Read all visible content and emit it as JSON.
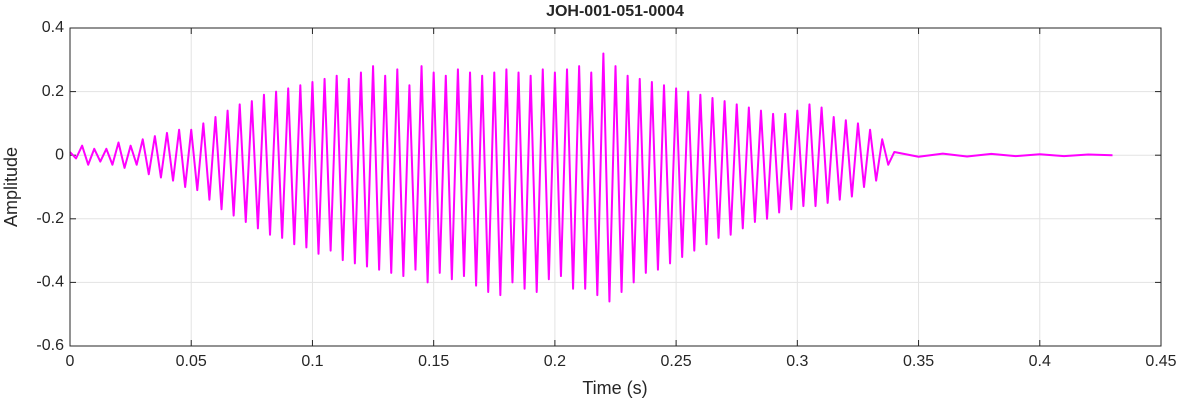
{
  "chart_data": {
    "type": "line",
    "title": "JOH-001-051-0004",
    "xlabel": "Time (s)",
    "ylabel": "Amplitude",
    "color": "#ff00ff",
    "grid": true,
    "xlim": [
      0,
      0.45
    ],
    "xticks": [
      0,
      0.05,
      0.1,
      0.15,
      0.2,
      0.25,
      0.3,
      0.35,
      0.4,
      0.45
    ],
    "ylim": [
      -0.6,
      0.4
    ],
    "yticks": [
      -0.6,
      -0.4,
      -0.2,
      0,
      0.2,
      0.4
    ],
    "x": [
      0,
      0.0025,
      0.005,
      0.0075,
      0.01,
      0.0125,
      0.015,
      0.0175,
      0.02,
      0.0225,
      0.025,
      0.0275,
      0.03,
      0.0325,
      0.035,
      0.0375,
      0.04,
      0.0425,
      0.045,
      0.0475,
      0.05,
      0.0525,
      0.055,
      0.0575,
      0.06,
      0.0625,
      0.065,
      0.0675,
      0.07,
      0.0725,
      0.075,
      0.0775,
      0.08,
      0.0825,
      0.085,
      0.0875,
      0.09,
      0.0925,
      0.095,
      0.0975,
      0.1,
      0.1025,
      0.105,
      0.1075,
      0.11,
      0.1125,
      0.115,
      0.1175,
      0.12,
      0.1225,
      0.125,
      0.1275,
      0.13,
      0.1325,
      0.135,
      0.1375,
      0.14,
      0.1425,
      0.145,
      0.1475,
      0.15,
      0.1525,
      0.155,
      0.1575,
      0.16,
      0.1625,
      0.165,
      0.1675,
      0.17,
      0.1725,
      0.175,
      0.1775,
      0.18,
      0.1825,
      0.185,
      0.1875,
      0.19,
      0.1925,
      0.195,
      0.1975,
      0.2,
      0.2025,
      0.205,
      0.2075,
      0.21,
      0.2125,
      0.215,
      0.2175,
      0.22,
      0.2225,
      0.225,
      0.2275,
      0.23,
      0.2325,
      0.235,
      0.2375,
      0.24,
      0.2425,
      0.245,
      0.2475,
      0.25,
      0.2525,
      0.255,
      0.2575,
      0.26,
      0.2625,
      0.265,
      0.2675,
      0.27,
      0.2725,
      0.275,
      0.2775,
      0.28,
      0.2825,
      0.285,
      0.2875,
      0.29,
      0.2925,
      0.295,
      0.2975,
      0.3,
      0.3025,
      0.305,
      0.3075,
      0.31,
      0.3125,
      0.315,
      0.3175,
      0.32,
      0.3225,
      0.325,
      0.3275,
      0.33,
      0.3325,
      0.335,
      0.3375,
      0.34,
      0.35,
      0.36,
      0.37,
      0.38,
      0.39,
      0.4,
      0.41,
      0.42,
      0.43
    ],
    "values": [
      0.01,
      -0.01,
      0.03,
      -0.03,
      0.02,
      -0.02,
      0.02,
      -0.03,
      0.04,
      -0.04,
      0.03,
      -0.03,
      0.05,
      -0.06,
      0.06,
      -0.07,
      0.07,
      -0.08,
      0.08,
      -0.1,
      0.08,
      -0.11,
      0.1,
      -0.14,
      0.12,
      -0.17,
      0.14,
      -0.19,
      0.16,
      -0.21,
      0.17,
      -0.23,
      0.19,
      -0.25,
      0.2,
      -0.26,
      0.21,
      -0.28,
      0.22,
      -0.29,
      0.23,
      -0.31,
      0.24,
      -0.3,
      0.25,
      -0.33,
      0.24,
      -0.34,
      0.26,
      -0.35,
      0.28,
      -0.36,
      0.25,
      -0.37,
      0.27,
      -0.38,
      0.22,
      -0.36,
      0.28,
      -0.4,
      0.26,
      -0.37,
      0.25,
      -0.39,
      0.27,
      -0.38,
      0.26,
      -0.41,
      0.25,
      -0.43,
      0.26,
      -0.44,
      0.27,
      -0.4,
      0.26,
      -0.42,
      0.25,
      -0.43,
      0.27,
      -0.39,
      0.26,
      -0.38,
      0.27,
      -0.42,
      0.28,
      -0.42,
      0.26,
      -0.44,
      0.32,
      -0.46,
      0.28,
      -0.43,
      0.25,
      -0.4,
      0.24,
      -0.37,
      0.23,
      -0.36,
      0.22,
      -0.34,
      0.21,
      -0.32,
      0.2,
      -0.3,
      0.19,
      -0.28,
      0.18,
      -0.26,
      0.17,
      -0.25,
      0.16,
      -0.23,
      0.15,
      -0.21,
      0.14,
      -0.2,
      0.13,
      -0.18,
      0.13,
      -0.17,
      0.14,
      -0.16,
      0.16,
      -0.16,
      0.15,
      -0.15,
      0.12,
      -0.14,
      0.11,
      -0.13,
      0.1,
      -0.1,
      0.08,
      -0.08,
      0.05,
      -0.03,
      0.01,
      -0.005,
      0.005,
      -0.004,
      0.004,
      -0.003,
      0.003,
      -0.003,
      0.002,
      0
    ]
  }
}
